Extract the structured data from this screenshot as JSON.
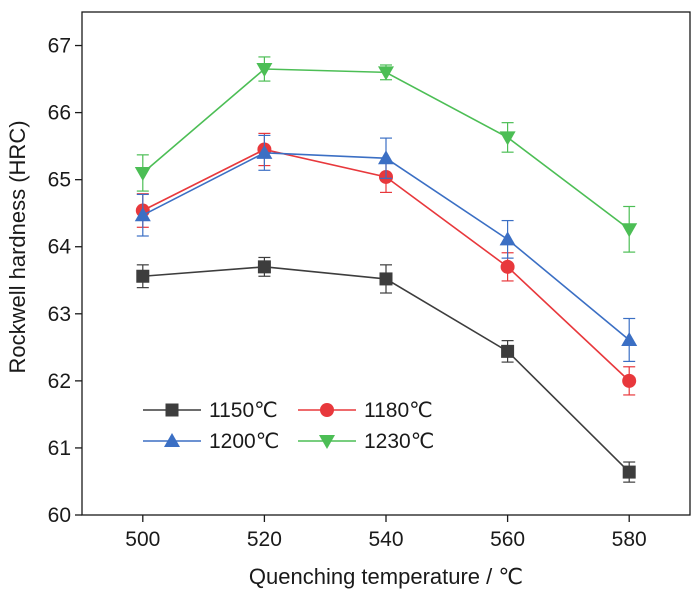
{
  "chart_data": {
    "type": "line",
    "title": "",
    "xlabel": "Quenching temperature / ℃",
    "ylabel": "Rockwell hardness (HRC)",
    "x": [
      500,
      520,
      540,
      560,
      580
    ],
    "xlim": [
      490,
      590
    ],
    "ylim": [
      60,
      67.5
    ],
    "xticks": [
      "500",
      "520",
      "540",
      "560",
      "580"
    ],
    "yticks": [
      "60",
      "61",
      "62",
      "63",
      "64",
      "65",
      "66",
      "67"
    ],
    "grid": false,
    "legend_position": "bottom-left",
    "series": [
      {
        "name": "1150℃",
        "color": "#3d3d3d",
        "marker": "square",
        "values": [
          63.56,
          63.7,
          63.52,
          62.44,
          60.64
        ],
        "errors": [
          0.17,
          0.14,
          0.21,
          0.16,
          0.15
        ]
      },
      {
        "name": "1180℃",
        "color": "#e8383c",
        "marker": "circle",
        "values": [
          64.54,
          65.45,
          65.04,
          63.7,
          62.0
        ],
        "errors": [
          0.25,
          0.24,
          0.23,
          0.21,
          0.21
        ]
      },
      {
        "name": "1200℃",
        "color": "#3b6fc4",
        "marker": "triangle-up",
        "values": [
          64.47,
          65.4,
          65.32,
          64.11,
          62.61
        ],
        "errors": [
          0.31,
          0.26,
          0.3,
          0.28,
          0.32
        ]
      },
      {
        "name": "1230℃",
        "color": "#4cbe55",
        "marker": "triangle-down",
        "values": [
          65.1,
          66.65,
          66.6,
          65.63,
          64.26
        ],
        "errors": [
          0.27,
          0.18,
          0.11,
          0.22,
          0.34
        ]
      }
    ]
  }
}
